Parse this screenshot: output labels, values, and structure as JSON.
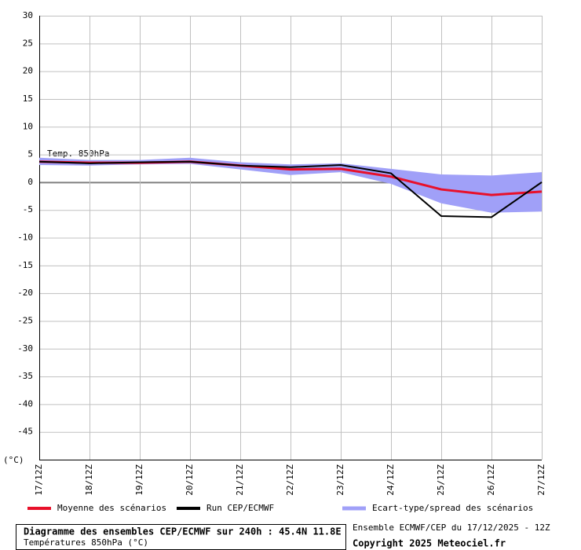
{
  "chart_data": {
    "type": "line",
    "annotation": "Temp. 850hPa",
    "y_unit": "(°C)",
    "title": "Diagramme des ensembles CEP/ECMWF sur 240h : 45.4N 11.8E",
    "subtitle": "Températures 850hPa (°C)",
    "run_info": "Ensemble ECMWF/CEP du 17/12/2025 - 12Z",
    "copyright": "Copyright 2025 Meteociel.fr",
    "categories": [
      "17/12Z",
      "18/12Z",
      "19/12Z",
      "20/12Z",
      "21/12Z",
      "22/12Z",
      "23/12Z",
      "24/12Z",
      "25/12Z",
      "26/12Z",
      "27/12Z"
    ],
    "ylim": [
      -50,
      30
    ],
    "yticks": [
      30,
      25,
      20,
      15,
      10,
      5,
      0,
      -5,
      -10,
      -15,
      -20,
      -25,
      -30,
      -35,
      -40,
      -45
    ],
    "grid": true,
    "series": [
      {
        "name": "Ecart-type/spread des scénarios",
        "type": "band",
        "color": "#a0a0f8",
        "upper": [
          4.4,
          4.0,
          4.0,
          4.4,
          3.6,
          3.2,
          3.4,
          2.4,
          1.4,
          1.2,
          1.8
        ],
        "lower": [
          3.1,
          3.0,
          3.2,
          3.3,
          2.3,
          1.3,
          1.8,
          -0.3,
          -3.8,
          -5.5,
          -5.3
        ]
      },
      {
        "name": "Moyenne des scénarios",
        "type": "line",
        "color": "#e8102a",
        "width": 3,
        "values": [
          3.7,
          3.5,
          3.5,
          3.7,
          3.0,
          2.3,
          2.4,
          1.0,
          -1.3,
          -2.3,
          -1.7
        ]
      },
      {
        "name": "Run CEP/ECMWF",
        "type": "line",
        "color": "#000000",
        "width": 2,
        "values": [
          3.7,
          3.4,
          3.6,
          3.7,
          3.0,
          2.7,
          3.1,
          1.6,
          -6.1,
          -6.3,
          0
        ]
      }
    ]
  }
}
